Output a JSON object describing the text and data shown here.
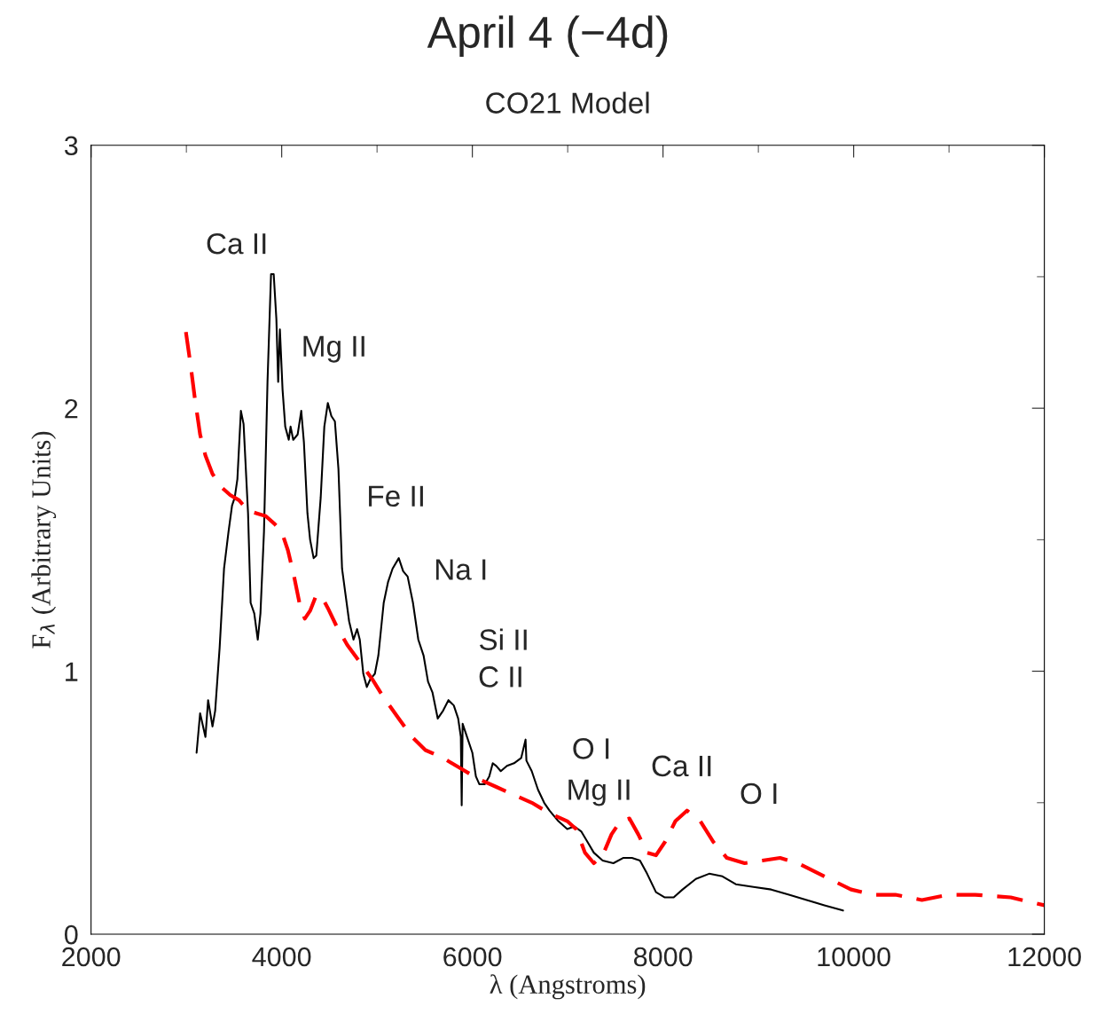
{
  "chart_data": {
    "type": "line",
    "title": "April 4 (−4d)",
    "subtitle": "CO21 Model",
    "xlabel": "λ (Angstroms)",
    "ylabel": "F$_{λ}$ (Arbitrary Units)",
    "xlim": [
      2000,
      12000
    ],
    "xticks": [
      2000,
      4000,
      6000,
      8000,
      10000,
      12000
    ],
    "ylim": [
      0,
      3
    ],
    "yticks": [
      0,
      1,
      2,
      3
    ],
    "grid": false,
    "series": [
      {
        "color": "#000000",
        "line_style": "solid",
        "x": [
          3107,
          3144,
          3200,
          3228,
          3274,
          3302,
          3349,
          3395,
          3442,
          3479,
          3507,
          3535,
          3572,
          3600,
          3647,
          3674,
          3712,
          3749,
          3777,
          3814,
          3851,
          3888,
          3916,
          3944,
          3963,
          3981,
          4009,
          4037,
          4074,
          4093,
          4121,
          4167,
          4205,
          4233,
          4270,
          4298,
          4335,
          4363,
          4409,
          4447,
          4484,
          4521,
          4558,
          4595,
          4633,
          4670,
          4707,
          4753,
          4791,
          4819,
          4856,
          4893,
          4930,
          4977,
          5014,
          5070,
          5116,
          5163,
          5228,
          5274,
          5321,
          5377,
          5433,
          5488,
          5535,
          5581,
          5637,
          5693,
          5749,
          5805,
          5851,
          5879,
          5888,
          5898,
          5944,
          6000,
          6037,
          6074,
          6130,
          6177,
          6214,
          6251,
          6298,
          6363,
          6437,
          6512,
          6558,
          6567,
          6623,
          6688,
          6753,
          6809,
          6902,
          6995,
          7070,
          7144,
          7209,
          7274,
          7367,
          7479,
          7581,
          7674,
          7758,
          7833,
          7926,
          8019,
          8112,
          8205,
          8344,
          8484,
          8623,
          8763,
          8949,
          9135,
          9321,
          9507,
          9693,
          9888
        ],
        "values": [
          0.69,
          0.84,
          0.75,
          0.89,
          0.79,
          0.85,
          1.09,
          1.39,
          1.53,
          1.63,
          1.66,
          1.73,
          1.99,
          1.94,
          1.6,
          1.26,
          1.22,
          1.12,
          1.22,
          1.53,
          2.1,
          2.51,
          2.51,
          2.34,
          2.1,
          2.3,
          2.07,
          1.93,
          1.88,
          1.93,
          1.88,
          1.9,
          1.99,
          1.87,
          1.6,
          1.5,
          1.43,
          1.44,
          1.66,
          1.93,
          2.02,
          1.97,
          1.95,
          1.77,
          1.39,
          1.29,
          1.19,
          1.12,
          1.16,
          1.12,
          0.99,
          0.94,
          0.97,
          0.99,
          1.06,
          1.26,
          1.34,
          1.39,
          1.43,
          1.38,
          1.36,
          1.26,
          1.12,
          1.06,
          0.96,
          0.92,
          0.82,
          0.85,
          0.89,
          0.87,
          0.82,
          0.75,
          0.49,
          0.8,
          0.75,
          0.69,
          0.6,
          0.57,
          0.57,
          0.6,
          0.65,
          0.64,
          0.62,
          0.64,
          0.65,
          0.67,
          0.74,
          0.66,
          0.62,
          0.55,
          0.5,
          0.47,
          0.43,
          0.4,
          0.41,
          0.39,
          0.35,
          0.31,
          0.28,
          0.27,
          0.29,
          0.29,
          0.28,
          0.23,
          0.16,
          0.14,
          0.14,
          0.17,
          0.21,
          0.23,
          0.22,
          0.19,
          0.18,
          0.17,
          0.15,
          0.13,
          0.11,
          0.09
        ]
      },
      {
        "color": "#ff0000",
        "line_style": "dashed",
        "x": [
          2995,
          3042,
          3088,
          3144,
          3200,
          3274,
          3367,
          3460,
          3553,
          3647,
          3740,
          3833,
          3926,
          4000,
          4065,
          4130,
          4186,
          4242,
          4298,
          4353,
          4409,
          4484,
          4577,
          4688,
          4809,
          4949,
          5070,
          5228,
          5367,
          5507,
          5693,
          5879,
          6065,
          6251,
          6437,
          6623,
          6809,
          6995,
          7088,
          7181,
          7274,
          7367,
          7460,
          7553,
          7647,
          7740,
          7833,
          7926,
          8019,
          8130,
          8251,
          8391,
          8530,
          8670,
          8856,
          9042,
          9228,
          9414,
          9693,
          9972,
          10205,
          10437,
          10716,
          10995,
          11274,
          11647,
          12000
        ],
        "values": [
          2.29,
          2.17,
          2.04,
          1.9,
          1.82,
          1.75,
          1.7,
          1.67,
          1.65,
          1.61,
          1.6,
          1.59,
          1.56,
          1.53,
          1.46,
          1.36,
          1.26,
          1.2,
          1.23,
          1.28,
          1.29,
          1.24,
          1.17,
          1.1,
          1.04,
          0.97,
          0.9,
          0.82,
          0.75,
          0.7,
          0.67,
          0.63,
          0.59,
          0.56,
          0.53,
          0.5,
          0.46,
          0.43,
          0.4,
          0.31,
          0.27,
          0.3,
          0.38,
          0.43,
          0.44,
          0.38,
          0.31,
          0.3,
          0.35,
          0.43,
          0.47,
          0.43,
          0.35,
          0.29,
          0.27,
          0.28,
          0.29,
          0.27,
          0.22,
          0.17,
          0.15,
          0.15,
          0.13,
          0.15,
          0.15,
          0.14,
          0.11
        ]
      }
    ],
    "annotations": [
      "Ca II",
      "Mg II",
      "Fe II",
      "Na I",
      "Si II",
      "C II",
      "O I",
      "Mg II",
      "Ca II",
      "O I"
    ]
  }
}
